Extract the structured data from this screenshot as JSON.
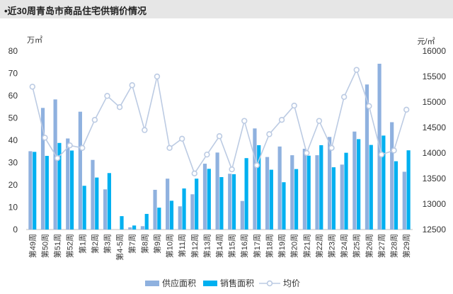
{
  "header": {
    "title": "•近30周青岛市商品住宅供销价情况"
  },
  "colors": {
    "supply": "#8fb1df",
    "sales": "#00b0f0",
    "price": "#bccbe3",
    "grid": "#dddddd"
  },
  "chart_data": {
    "type": "bar",
    "title": "",
    "categories": [
      "第49周",
      "第50周",
      "第51周",
      "第52周",
      "第1周",
      "第2周",
      "第3周",
      "第4-5周",
      "第7周",
      "第8周",
      "第9周",
      "第10周",
      "第11周",
      "第12周",
      "第13周",
      "第14周",
      "第15周",
      "第16周",
      "第17周",
      "第18周",
      "第19周",
      "第20周",
      "第21周",
      "第22周",
      "第23周",
      "第24周",
      "第25周",
      "第26周",
      "第27周",
      "第28周",
      "第29周"
    ],
    "series": [
      {
        "name": "供应面积",
        "kind": "bar",
        "axis": "left",
        "values": [
          35.1,
          54.5,
          58.3,
          40.8,
          52.8,
          31.2,
          18.0,
          0,
          1.0,
          1.5,
          17.8,
          22.8,
          10.4,
          15.8,
          29.5,
          34.5,
          25.0,
          12.8,
          45.3,
          32.5,
          37.2,
          33.3,
          36.2,
          33.3,
          41.5,
          29.1,
          43.9,
          65.0,
          74.3,
          48.1,
          25.9
        ]
      },
      {
        "name": "销售面积",
        "kind": "bar",
        "axis": "left",
        "values": [
          34.8,
          33.0,
          38.8,
          35.4,
          19.6,
          23.3,
          25.3,
          6.0,
          1.8,
          7.0,
          9.8,
          12.9,
          18.4,
          22.8,
          27.2,
          23.5,
          24.8,
          32.0,
          37.8,
          26.8,
          21.2,
          27.1,
          33.1,
          37.8,
          27.9,
          34.4,
          40.5,
          37.9,
          42.1,
          30.6,
          35.5
        ]
      },
      {
        "name": "均价",
        "kind": "line",
        "axis": "right",
        "values": [
          15300,
          14300,
          13900,
          14150,
          14100,
          14650,
          15120,
          14900,
          15330,
          14450,
          15500,
          14100,
          14280,
          13600,
          13970,
          14330,
          13680,
          14630,
          13760,
          14370,
          14650,
          14930,
          14000,
          14630,
          14100,
          15100,
          15630,
          14920,
          13970,
          14050,
          14850
        ]
      }
    ],
    "y_left": {
      "label": "万㎡",
      "ticks": [
        0,
        10,
        20,
        30,
        40,
        50,
        60,
        70,
        80
      ],
      "min": 0,
      "max": 80
    },
    "y_right": {
      "label": "元/㎡",
      "ticks": [
        12500,
        13000,
        13500,
        14000,
        14500,
        15000,
        15500,
        16000
      ],
      "min": 12500,
      "max": 16000
    },
    "legend": {
      "position": "bottom",
      "items": [
        "供应面积",
        "销售面积",
        "均价"
      ]
    },
    "grid": false
  }
}
